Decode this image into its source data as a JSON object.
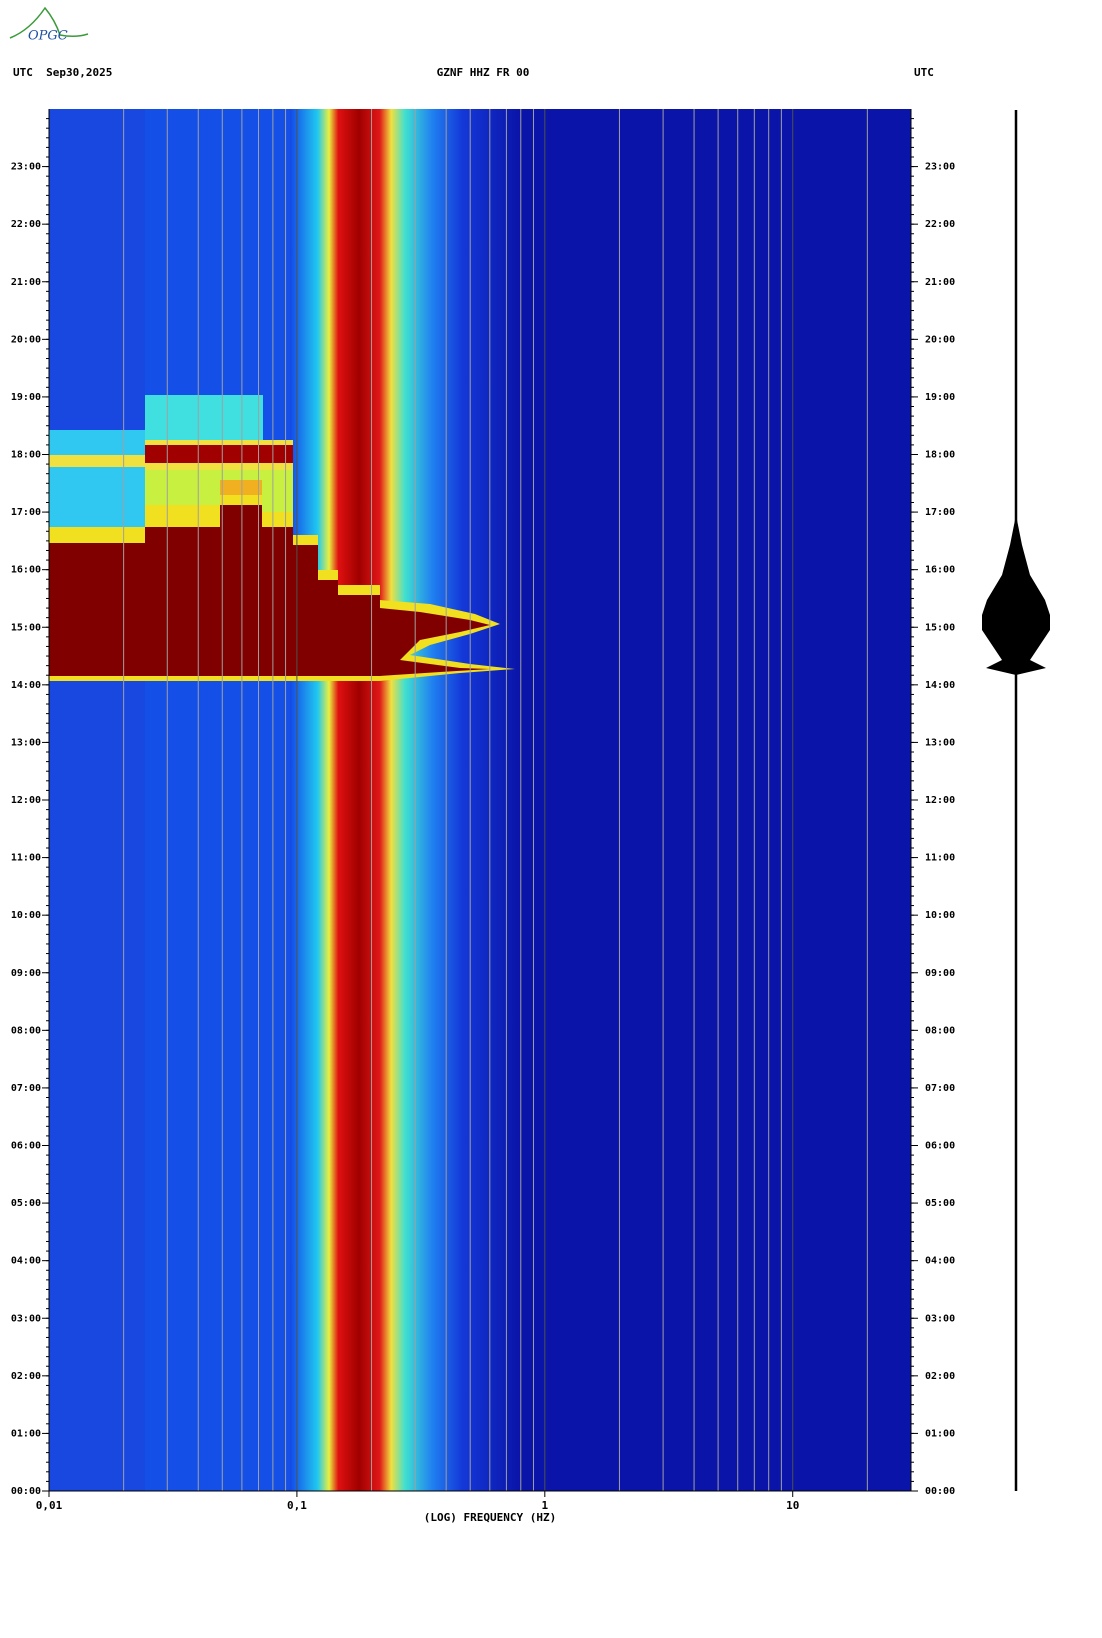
{
  "logo": "OPGC",
  "chart_data": {
    "type": "spectrogram",
    "title": "GZNF HHZ FR 00",
    "date_label": "UTC  Sep30,2025",
    "timezone_label": "UTC",
    "x_label": "(LOG) FREQUENCY (HZ)",
    "xscale": "log",
    "xlim": [
      0.01,
      30
    ],
    "xticks": [
      {
        "value": 0.01,
        "label": "0,01"
      },
      {
        "value": 0.1,
        "label": "0,1"
      },
      1,
      10
    ],
    "ylim": [
      0,
      24
    ],
    "yticks": [
      {
        "value": 0,
        "label": "00:00"
      },
      {
        "value": 1,
        "label": "01:00"
      },
      {
        "value": 2,
        "label": "02:00"
      },
      {
        "value": 3,
        "label": "03:00"
      },
      {
        "value": 4,
        "label": "04:00"
      },
      {
        "value": 5,
        "label": "05:00"
      },
      {
        "value": 6,
        "label": "06:00"
      },
      {
        "value": 7,
        "label": "07:00"
      },
      {
        "value": 8,
        "label": "08:00"
      },
      {
        "value": 9,
        "label": "09:00"
      },
      {
        "value": 10,
        "label": "10:00"
      },
      {
        "value": 11,
        "label": "11:00"
      },
      {
        "value": 12,
        "label": "12:00"
      },
      {
        "value": 13,
        "label": "13:00"
      },
      {
        "value": 14,
        "label": "14:00"
      },
      {
        "value": 15,
        "label": "15:00"
      },
      {
        "value": 16,
        "label": "16:00"
      },
      {
        "value": 17,
        "label": "17:00"
      },
      {
        "value": 18,
        "label": "18:00"
      },
      {
        "value": 19,
        "label": "19:00"
      },
      {
        "value": 20,
        "label": "20:00"
      },
      {
        "value": 21,
        "label": "21:00"
      },
      {
        "value": 22,
        "label": "22:00"
      },
      {
        "value": 23,
        "label": "23:00"
      }
    ],
    "grid": true
  }
}
